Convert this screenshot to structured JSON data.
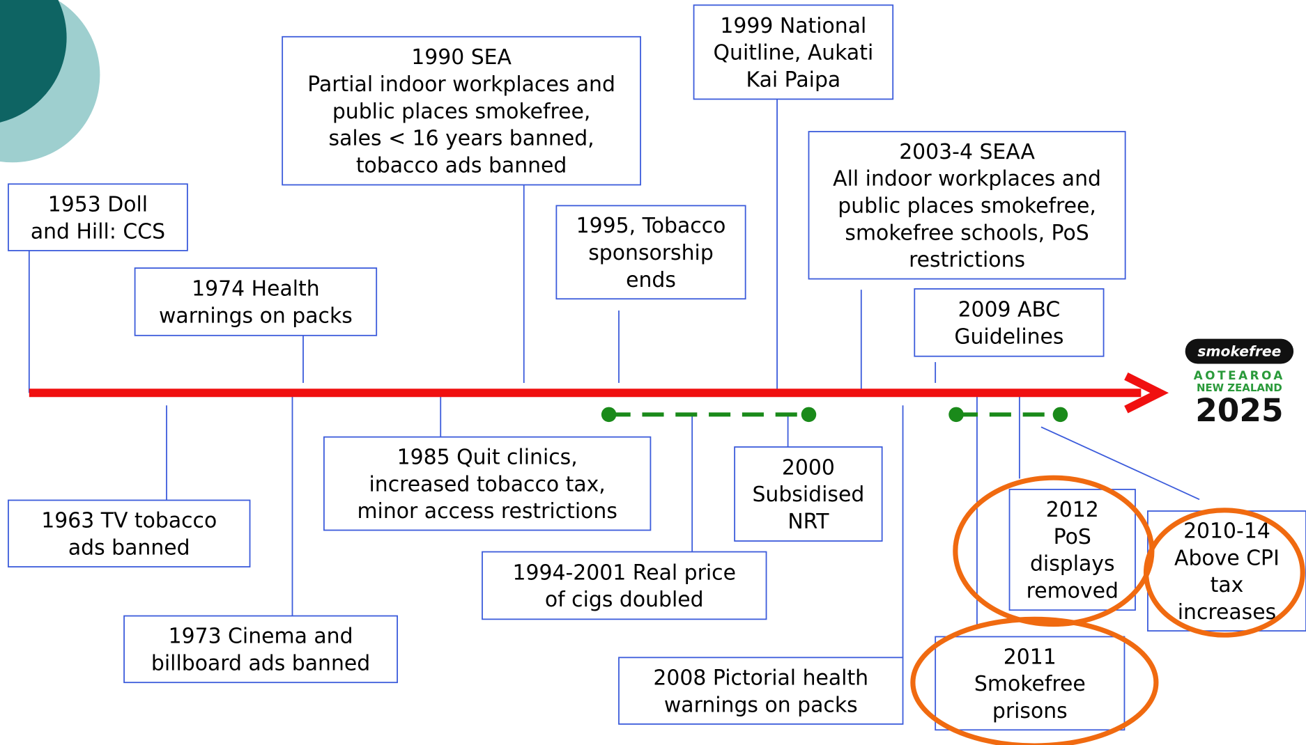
{
  "events": [
    {
      "lines": [
        "1953 Doll",
        "and Hill: CCS"
      ]
    },
    {
      "lines": [
        "1974 Health",
        "warnings on packs"
      ]
    },
    {
      "lines": [
        "1990 SEA",
        "Partial indoor workplaces and",
        "public places smokefree,",
        "sales < 16 years banned,",
        "tobacco ads banned"
      ]
    },
    {
      "lines": [
        "1995, Tobacco",
        "sponsorship",
        "ends"
      ]
    },
    {
      "lines": [
        "1999 National",
        "Quitline, Aukati",
        "Kai Paipa"
      ]
    },
    {
      "lines": [
        "2003-4 SEAA",
        "All indoor workplaces and",
        "public places smokefree,",
        "smokefree schools, PoS",
        "restrictions"
      ]
    },
    {
      "lines": [
        "2009 ABC",
        "Guidelines"
      ]
    },
    {
      "lines": [
        "1963 TV tobacco",
        "ads banned"
      ]
    },
    {
      "lines": [
        "1973 Cinema and",
        "billboard ads banned"
      ]
    },
    {
      "lines": [
        "1985 Quit clinics,",
        "increased tobacco tax,",
        "minor access restrictions"
      ]
    },
    {
      "lines": [
        "1994-2001 Real price",
        "of cigs doubled"
      ]
    },
    {
      "lines": [
        "2000",
        "Subsidised",
        "NRT"
      ]
    },
    {
      "lines": [
        "2008 Pictorial health",
        "warnings on packs"
      ]
    },
    {
      "lines": [
        "2011",
        "Smokefree",
        "prisons"
      ]
    },
    {
      "lines": [
        "2012",
        "PoS",
        "displays",
        "removed"
      ]
    },
    {
      "lines": [
        "2010-14",
        "Above CPI",
        "tax",
        "increases"
      ]
    }
  ],
  "logo": {
    "brand": "smokefree",
    "region1": "AOTEAROA",
    "region2": "NEW ZEALAND",
    "year": "2025"
  }
}
